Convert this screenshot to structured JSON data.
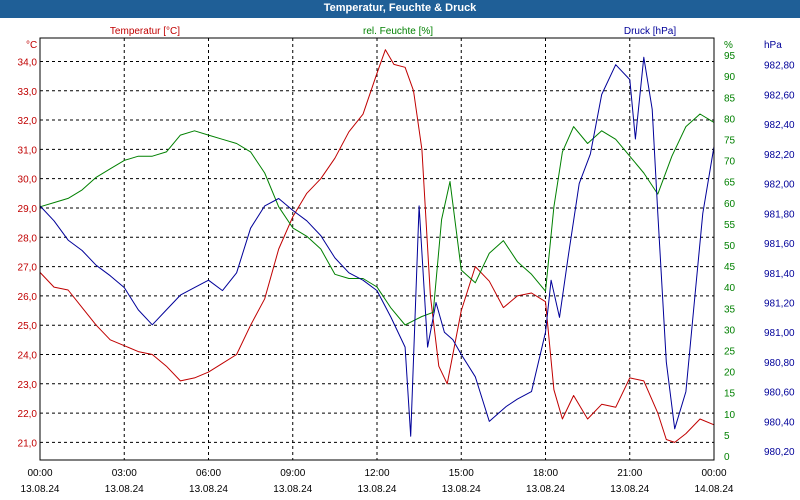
{
  "window": {
    "title": "Temperatur, Feuchte & Druck"
  },
  "colors": {
    "temperature": "#c00000",
    "humidity": "#008000",
    "pressure": "#000099",
    "grid": "#000000",
    "title_bar": "#1f5f97"
  },
  "chart_data": {
    "type": "line",
    "title": "Temperatur, Feuchte & Druck",
    "grid": true,
    "x": {
      "range": [
        "13.08.24 00:00",
        "14.08.24 00:00"
      ],
      "ticks": [
        {
          "time": "00:00",
          "date": "13.08.24"
        },
        {
          "time": "03:00",
          "date": "13.08.24"
        },
        {
          "time": "06:00",
          "date": "13.08.24"
        },
        {
          "time": "09:00",
          "date": "13.08.24"
        },
        {
          "time": "12:00",
          "date": "13.08.24"
        },
        {
          "time": "15:00",
          "date": "13.08.24"
        },
        {
          "time": "18:00",
          "date": "13.08.24"
        },
        {
          "time": "21:00",
          "date": "13.08.24"
        },
        {
          "time": "00:00",
          "date": "14.08.24"
        }
      ]
    },
    "axes": {
      "temperature": {
        "unit": "°C",
        "label": "Temperatur [°C]",
        "ylim": [
          20.4,
          34.8
        ],
        "ticks": [
          "21,0",
          "22,0",
          "23,0",
          "24,0",
          "25,0",
          "26,0",
          "27,0",
          "28,0",
          "29,0",
          "30,0",
          "31,0",
          "32,0",
          "33,0",
          "34,0"
        ]
      },
      "humidity": {
        "unit": "%",
        "label": "rel. Feuchte [%]",
        "ylim": [
          0,
          100
        ],
        "ticks": [
          "0",
          "5",
          "10",
          "15",
          "20",
          "25",
          "30",
          "35",
          "40",
          "45",
          "50",
          "55",
          "60",
          "65",
          "70",
          "75",
          "80",
          "85",
          "90",
          "95",
          "%"
        ]
      },
      "pressure": {
        "unit": "hPa",
        "label": "Druck [hPa]",
        "ylim": [
          980.14,
          982.98
        ],
        "ticks": [
          "980,20",
          "980,40",
          "980,60",
          "980,80",
          "981,00",
          "981,20",
          "981,40",
          "981,60",
          "981,80",
          "982,00",
          "982,20",
          "982,40",
          "982,60",
          "982,80"
        ]
      }
    },
    "series": [
      {
        "name": "Temperatur [°C]",
        "axis": "temperature",
        "x": [
          0,
          0.5,
          1,
          1.5,
          2,
          2.5,
          3,
          3.5,
          4,
          4.5,
          5,
          5.5,
          6,
          6.5,
          7,
          7.5,
          8,
          8.5,
          9,
          9.5,
          10,
          10.5,
          11,
          11.5,
          12,
          12.3,
          12.6,
          13,
          13.3,
          13.6,
          13.9,
          14.2,
          14.5,
          15,
          15.5,
          16,
          16.5,
          17,
          17.5,
          18,
          18.3,
          18.6,
          19,
          19.5,
          20,
          20.5,
          21,
          21.5,
          22,
          22.3,
          22.6,
          23,
          23.5,
          24
        ],
        "y": [
          26.8,
          26.3,
          26.2,
          25.6,
          25.0,
          24.5,
          24.3,
          24.1,
          24.0,
          23.6,
          23.1,
          23.2,
          23.4,
          23.7,
          24.0,
          25.0,
          25.9,
          27.6,
          28.7,
          29.5,
          30.0,
          30.7,
          31.6,
          32.2,
          33.6,
          34.4,
          33.9,
          33.8,
          33.0,
          31.0,
          26.0,
          23.6,
          23.0,
          25.5,
          27.0,
          26.5,
          25.6,
          26.0,
          26.1,
          25.8,
          22.8,
          21.8,
          22.6,
          21.8,
          22.3,
          22.2,
          23.2,
          23.1,
          22.0,
          21.1,
          21.0,
          21.3,
          21.8,
          21.6
        ]
      },
      {
        "name": "rel. Feuchte [%]",
        "axis": "humidity",
        "x": [
          0,
          0.5,
          1,
          1.5,
          2,
          2.5,
          3,
          3.5,
          4,
          4.5,
          5,
          5.5,
          6,
          6.5,
          7,
          7.5,
          8,
          8.5,
          9,
          9.5,
          10,
          10.5,
          11,
          11.5,
          12,
          12.5,
          13,
          13.3,
          13.6,
          14,
          14.3,
          14.6,
          15,
          15.5,
          16,
          16.5,
          17,
          17.5,
          18,
          18.3,
          18.6,
          19,
          19.5,
          20,
          20.5,
          21,
          21.5,
          22,
          22.5,
          23,
          23.5,
          24
        ],
        "y": [
          60,
          61,
          62,
          64,
          67,
          69,
          71,
          72,
          72,
          73,
          77,
          78,
          77,
          76,
          75,
          73,
          68,
          60,
          55,
          53,
          50,
          44,
          43,
          43,
          41,
          36,
          32,
          33,
          34,
          35,
          57,
          66,
          45,
          42,
          49,
          52,
          47,
          44,
          40,
          60,
          73,
          79,
          75,
          78,
          76,
          72,
          68,
          63,
          72,
          79,
          82,
          80
        ]
      },
      {
        "name": "Druck [hPa]",
        "axis": "pressure",
        "x": [
          0,
          0.5,
          1,
          1.5,
          2,
          2.5,
          3,
          3.5,
          4,
          4.5,
          5,
          5.5,
          6,
          6.5,
          7,
          7.5,
          8,
          8.5,
          9,
          9.5,
          10,
          10.5,
          11,
          11.5,
          12,
          12.5,
          13,
          13.2,
          13.5,
          13.8,
          14.1,
          14.4,
          14.7,
          15,
          15.5,
          16,
          16.3,
          16.6,
          17,
          17.5,
          18,
          18.2,
          18.5,
          18.8,
          19.2,
          19.6,
          20,
          20.5,
          21,
          21.2,
          21.5,
          21.8,
          22,
          22.3,
          22.6,
          23,
          23.3,
          23.6,
          24
        ],
        "y": [
          981.85,
          981.75,
          981.62,
          981.55,
          981.45,
          981.38,
          981.3,
          981.15,
          981.05,
          981.15,
          981.25,
          981.3,
          981.35,
          981.28,
          981.4,
          981.7,
          981.85,
          981.9,
          981.82,
          981.75,
          981.65,
          981.5,
          981.4,
          981.35,
          981.28,
          981.1,
          980.9,
          980.3,
          981.85,
          980.9,
          981.2,
          981.0,
          980.95,
          980.85,
          980.7,
          980.4,
          980.45,
          980.5,
          980.55,
          980.6,
          981.0,
          981.35,
          981.1,
          981.5,
          982.0,
          982.2,
          982.6,
          982.8,
          982.7,
          982.3,
          982.85,
          982.5,
          981.8,
          980.8,
          980.35,
          980.6,
          981.2,
          981.8,
          982.25
        ]
      }
    ]
  }
}
